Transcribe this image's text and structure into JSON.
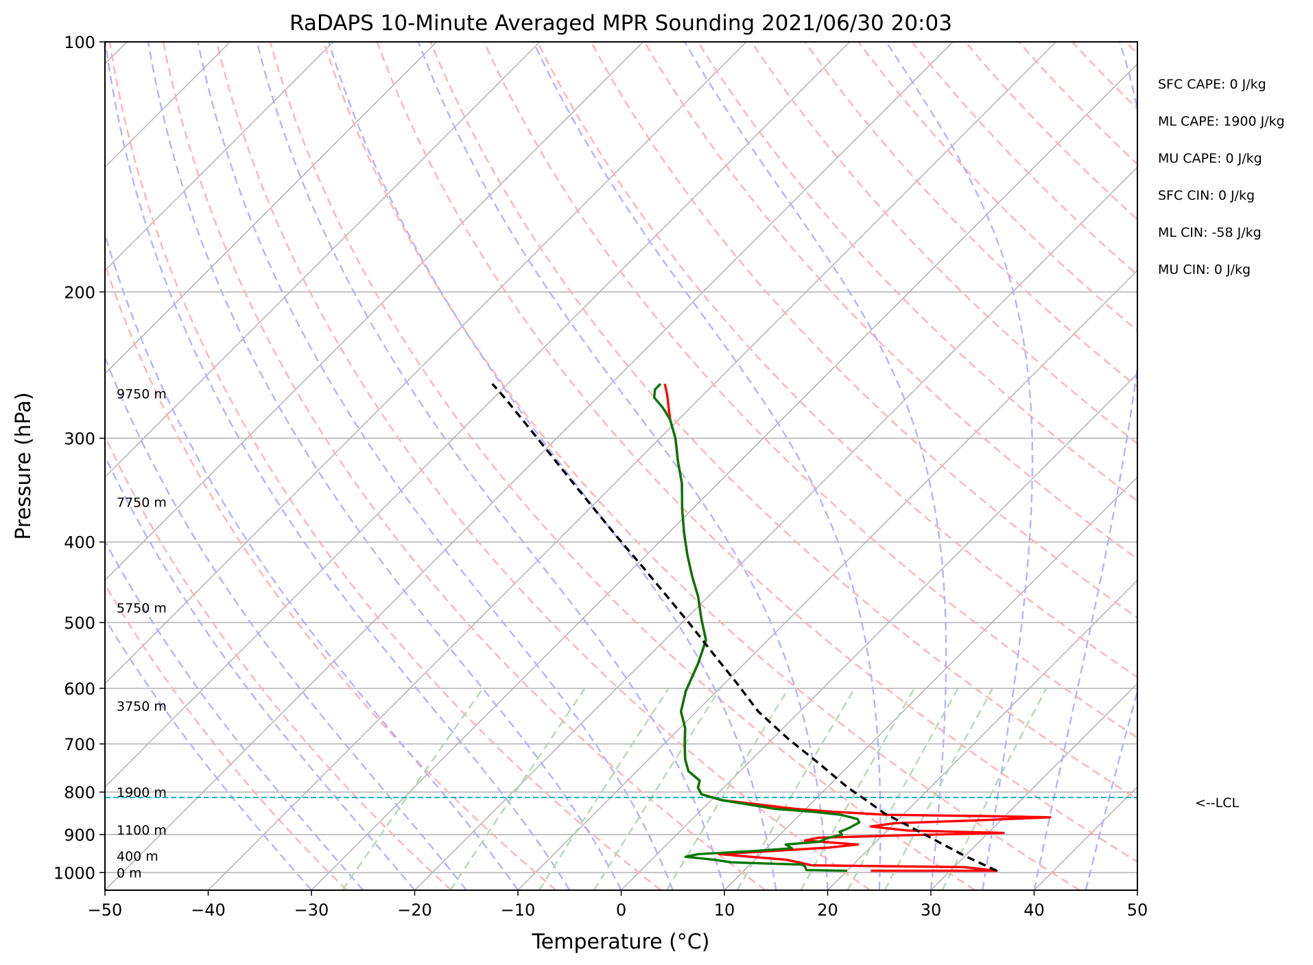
{
  "chart_data": {
    "type": "line",
    "subtype": "skew-t log-p sounding",
    "title": "RaDAPS 10-Minute Averaged MPR Sounding 2021/06/30 20:03",
    "xlabel": "Temperature (°C)",
    "ylabel": "Pressure (hPa)",
    "xlim": [
      -50,
      50
    ],
    "ylim": [
      1050,
      100
    ],
    "y_scale": "log",
    "grid": true,
    "x_ticks": [
      -50,
      -40,
      -30,
      -20,
      -10,
      0,
      10,
      20,
      30,
      40,
      50
    ],
    "x_tick_labels": [
      "−50",
      "−40",
      "−30",
      "−20",
      "−10",
      "0",
      "10",
      "20",
      "30",
      "40",
      "50"
    ],
    "y_ticks": [
      1000,
      900,
      800,
      700,
      600,
      500,
      400,
      300,
      200,
      100
    ],
    "y_tick_labels": [
      "1000",
      "900",
      "800",
      "700",
      "600",
      "500",
      "400",
      "300",
      "200",
      "100"
    ],
    "series": [
      {
        "role": "temperature",
        "color": "#ff0000",
        "points": [
          [
            22.3,
            995
          ],
          [
            29.5,
            995
          ],
          [
            34.5,
            995
          ],
          [
            31.0,
            985
          ],
          [
            16.0,
            980
          ],
          [
            14.5,
            972
          ],
          [
            13.0,
            965
          ],
          [
            6.0,
            950
          ],
          [
            12.0,
            940
          ],
          [
            16.0,
            933
          ],
          [
            18.5,
            925
          ],
          [
            13.0,
            915
          ],
          [
            14.0,
            908
          ],
          [
            22.0,
            902
          ],
          [
            31.5,
            896
          ],
          [
            22.0,
            890
          ],
          [
            18.0,
            880
          ],
          [
            20.0,
            872
          ],
          [
            27.0,
            866
          ],
          [
            34.5,
            858
          ],
          [
            28.0,
            855
          ],
          [
            18.5,
            852
          ],
          [
            13.0,
            845
          ],
          [
            9.0,
            838
          ],
          [
            5.0,
            828
          ],
          [
            1.0,
            818
          ],
          [
            -1.5,
            805
          ],
          [
            -2.5,
            790
          ],
          [
            -3.0,
            775
          ],
          [
            -5.0,
            755
          ],
          [
            -6.5,
            730
          ],
          [
            -8.0,
            700
          ],
          [
            -9.5,
            670
          ],
          [
            -11.5,
            640
          ],
          [
            -13.0,
            605
          ],
          [
            -14.5,
            560
          ],
          [
            -16.0,
            525
          ],
          [
            -18.5,
            495
          ],
          [
            -21.0,
            465
          ],
          [
            -23.5,
            440
          ],
          [
            -26.0,
            415
          ],
          [
            -28.5,
            390
          ],
          [
            -31.0,
            365
          ],
          [
            -33.5,
            340
          ],
          [
            -36.0,
            320
          ],
          [
            -38.5,
            300
          ],
          [
            -40.8,
            285
          ],
          [
            -42.2,
            275
          ],
          [
            -43.5,
            266
          ],
          [
            -44.8,
            258
          ]
        ]
      },
      {
        "role": "dewpoint",
        "color": "#007700",
        "points": [
          [
            20.0,
            995
          ],
          [
            16.0,
            993
          ],
          [
            15.5,
            983
          ],
          [
            15.0,
            978
          ],
          [
            8.0,
            972
          ],
          [
            6.0,
            965
          ],
          [
            3.0,
            957
          ],
          [
            4.0,
            950
          ],
          [
            9.0,
            942
          ],
          [
            12.5,
            935
          ],
          [
            11.5,
            925
          ],
          [
            14.5,
            918
          ],
          [
            15.0,
            908
          ],
          [
            16.0,
            900
          ],
          [
            15.5,
            893
          ],
          [
            16.0,
            885
          ],
          [
            16.5,
            870
          ],
          [
            16.0,
            862
          ],
          [
            14.0,
            852
          ],
          [
            11.0,
            845
          ],
          [
            7.0,
            838
          ],
          [
            4.0,
            828
          ],
          [
            1.0,
            818
          ],
          [
            -1.5,
            805
          ],
          [
            -2.5,
            790
          ],
          [
            -3.0,
            775
          ],
          [
            -5.0,
            755
          ],
          [
            -6.5,
            730
          ],
          [
            -8.0,
            700
          ],
          [
            -9.5,
            670
          ],
          [
            -11.5,
            640
          ],
          [
            -13.0,
            605
          ],
          [
            -14.5,
            560
          ],
          [
            -16.0,
            525
          ],
          [
            -18.5,
            495
          ],
          [
            -21.0,
            465
          ],
          [
            -23.5,
            440
          ],
          [
            -26.0,
            415
          ],
          [
            -28.5,
            390
          ],
          [
            -31.0,
            365
          ],
          [
            -33.5,
            340
          ],
          [
            -36.0,
            320
          ],
          [
            -38.5,
            300
          ],
          [
            -40.8,
            285
          ],
          [
            -42.6,
            276
          ],
          [
            -44.5,
            268
          ],
          [
            -45.2,
            262
          ],
          [
            -45.2,
            258
          ]
        ]
      },
      {
        "role": "parcel profile",
        "color": "#000000",
        "style": "dashed",
        "points": [
          [
            34.5,
            995
          ],
          [
            30.0,
            955
          ],
          [
            26.0,
            918
          ],
          [
            22.0,
            882
          ],
          [
            18.0,
            848
          ],
          [
            15.0,
            818
          ],
          [
            12.0,
            790
          ],
          [
            7.0,
            740
          ],
          [
            1.5,
            690
          ],
          [
            -4.0,
            640
          ],
          [
            -9.0,
            590
          ],
          [
            -14.0,
            545
          ],
          [
            -19.0,
            503
          ],
          [
            -24.0,
            465
          ],
          [
            -29.0,
            430
          ],
          [
            -34.0,
            398
          ],
          [
            -39.0,
            368
          ],
          [
            -44.0,
            340
          ],
          [
            -49.0,
            314
          ],
          [
            -54.0,
            290
          ],
          [
            -59.0,
            268
          ],
          [
            -61.5,
            258
          ]
        ]
      }
    ],
    "lcl": {
      "label": "<--LCL",
      "pressure_hpa": 812,
      "color": "#00bbbb"
    },
    "height_labels": [
      {
        "text": "0 m",
        "pressure_hpa": 1000
      },
      {
        "text": "400 m",
        "pressure_hpa": 955
      },
      {
        "text": "1100 m",
        "pressure_hpa": 888
      },
      {
        "text": "1900 m",
        "pressure_hpa": 800
      },
      {
        "text": "3750 m",
        "pressure_hpa": 630
      },
      {
        "text": "5750 m",
        "pressure_hpa": 480
      },
      {
        "text": "7750 m",
        "pressure_hpa": 358
      },
      {
        "text": "9750 m",
        "pressure_hpa": 265
      }
    ],
    "stats": [
      {
        "label": "SFC CAPE: 0 J/kg"
      },
      {
        "label": "ML CAPE: 1900 J/kg"
      },
      {
        "label": "MU CAPE: 0 J/kg"
      },
      {
        "label": "SFC CIN: 0 J/kg"
      },
      {
        "label": "ML CIN: -58 J/kg"
      },
      {
        "label": "MU CIN: 0 J/kg"
      }
    ],
    "colors": {
      "isotherm": "#b0b0b0",
      "dry_adiabat": "#ffb3b3",
      "moist_adiabat": "#b3b3ff",
      "mixing_ratio": "#b3d9b3",
      "grid": "#b0b0b0"
    }
  }
}
